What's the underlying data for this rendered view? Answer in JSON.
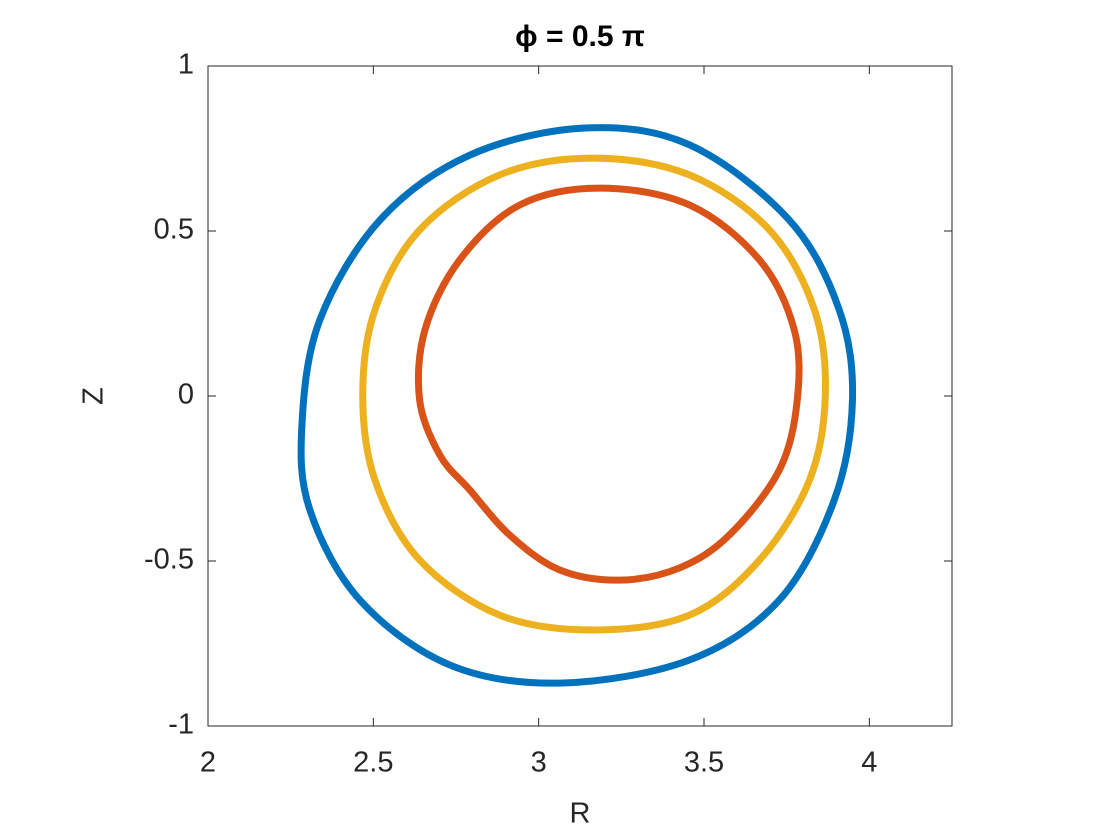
{
  "chart_data": {
    "type": "line",
    "title": "ϕ = 0.5 π",
    "x_label": "R",
    "y_label": "Z",
    "closed": true,
    "grid": false,
    "xlim": [
      2,
      4.25
    ],
    "ylim": [
      -1,
      1
    ],
    "xticks": [
      2,
      2.5,
      3,
      3.5,
      4
    ],
    "yticks": [
      -1,
      -0.5,
      0,
      0.5,
      1
    ],
    "series": [
      {
        "color": "#0072BD",
        "x": [
          3.139,
          3.456,
          3.758,
          3.909,
          3.949,
          3.894,
          3.728,
          3.456,
          3.063,
          2.731,
          2.459,
          2.308,
          2.284,
          2.338,
          2.52,
          2.792
        ],
        "values": [
          0.812,
          0.761,
          0.533,
          0.261,
          -0.012,
          -0.315,
          -0.618,
          -0.8,
          -0.87,
          -0.815,
          -0.618,
          -0.345,
          -0.088,
          0.23,
          0.533,
          0.73
        ]
      },
      {
        "color": "#EDB120",
        "x": [
          3.163,
          3.456,
          3.698,
          3.834,
          3.867,
          3.819,
          3.668,
          3.456,
          3.163,
          2.882,
          2.64,
          2.505,
          2.468,
          2.505,
          2.64,
          2.882
        ],
        "values": [
          0.721,
          0.67,
          0.503,
          0.261,
          0.003,
          -0.255,
          -0.497,
          -0.664,
          -0.709,
          -0.664,
          -0.497,
          -0.255,
          0.003,
          0.261,
          0.503,
          0.67
        ]
      },
      {
        "color": "#D95319",
        "x": [
          3.184,
          3.456,
          3.668,
          3.773,
          3.782,
          3.728,
          3.577,
          3.426,
          3.245,
          3.063,
          2.912,
          2.792,
          2.701,
          2.64,
          2.656,
          2.761,
          2.943
        ],
        "values": [
          0.63,
          0.579,
          0.412,
          0.2,
          -0.012,
          -0.224,
          -0.421,
          -0.521,
          -0.558,
          -0.527,
          -0.421,
          -0.285,
          -0.179,
          -0.012,
          0.2,
          0.412,
          0.579
        ]
      }
    ]
  }
}
